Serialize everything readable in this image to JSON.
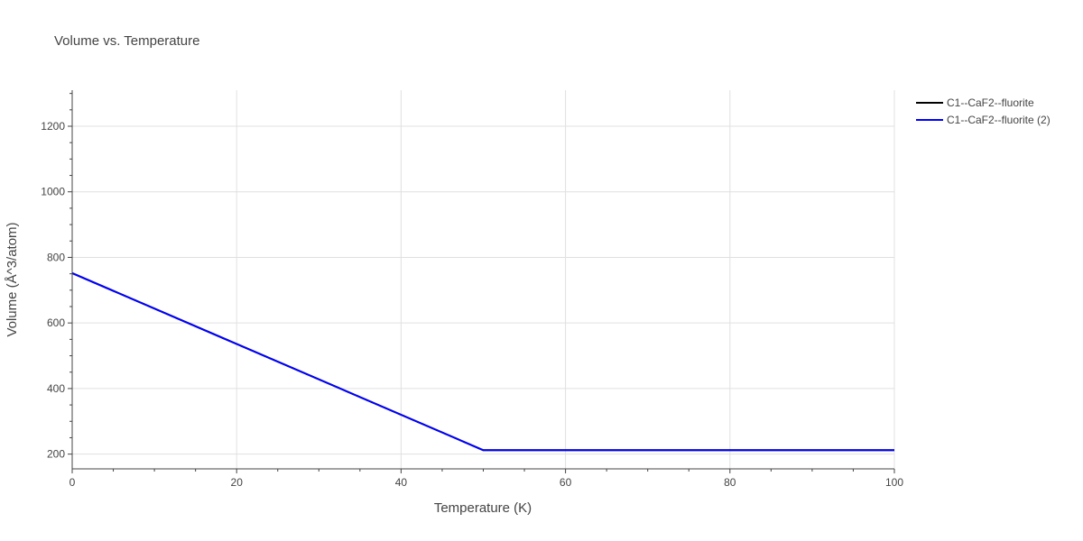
{
  "chart_data": {
    "type": "line",
    "title": "Volume vs. Temperature",
    "xlabel": "Temperature (K)",
    "ylabel": "Volume (Å^3/atom)",
    "xlim": [
      0,
      100
    ],
    "ylim": [
      155,
      1310
    ],
    "x_ticks": [
      0,
      20,
      40,
      60,
      80,
      100
    ],
    "y_ticks": [
      200,
      400,
      600,
      800,
      1000,
      1200
    ],
    "x_minor_step": 5,
    "y_minor_step": 50,
    "grid": true,
    "legend_position": "top-right",
    "series": [
      {
        "name": "C1--CaF2--fluorite",
        "color": "#000000",
        "x": [
          0,
          50,
          100
        ],
        "y": [
          752,
          212,
          212
        ]
      },
      {
        "name": "C1--CaF2--fluorite (2)",
        "color": "#0000ff",
        "x": [
          0,
          50,
          100
        ],
        "y": [
          752,
          212,
          212
        ]
      }
    ]
  }
}
